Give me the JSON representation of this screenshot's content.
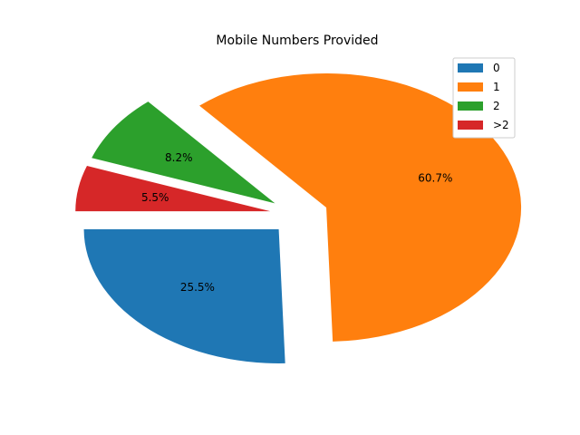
{
  "chart_data": {
    "type": "pie",
    "title": "Mobile Numbers Provided",
    "labels": [
      "0",
      "1",
      "2",
      ">2"
    ],
    "values": [
      25.5,
      60.7,
      8.2,
      5.5
    ],
    "value_labels": [
      "25.5%",
      "60.7%",
      "8.2%",
      "5.5%"
    ],
    "colors": [
      "#1f77b4",
      "#ff7f0e",
      "#2ca02c",
      "#d62728"
    ],
    "exploded": true,
    "legend_position": "top-right"
  }
}
